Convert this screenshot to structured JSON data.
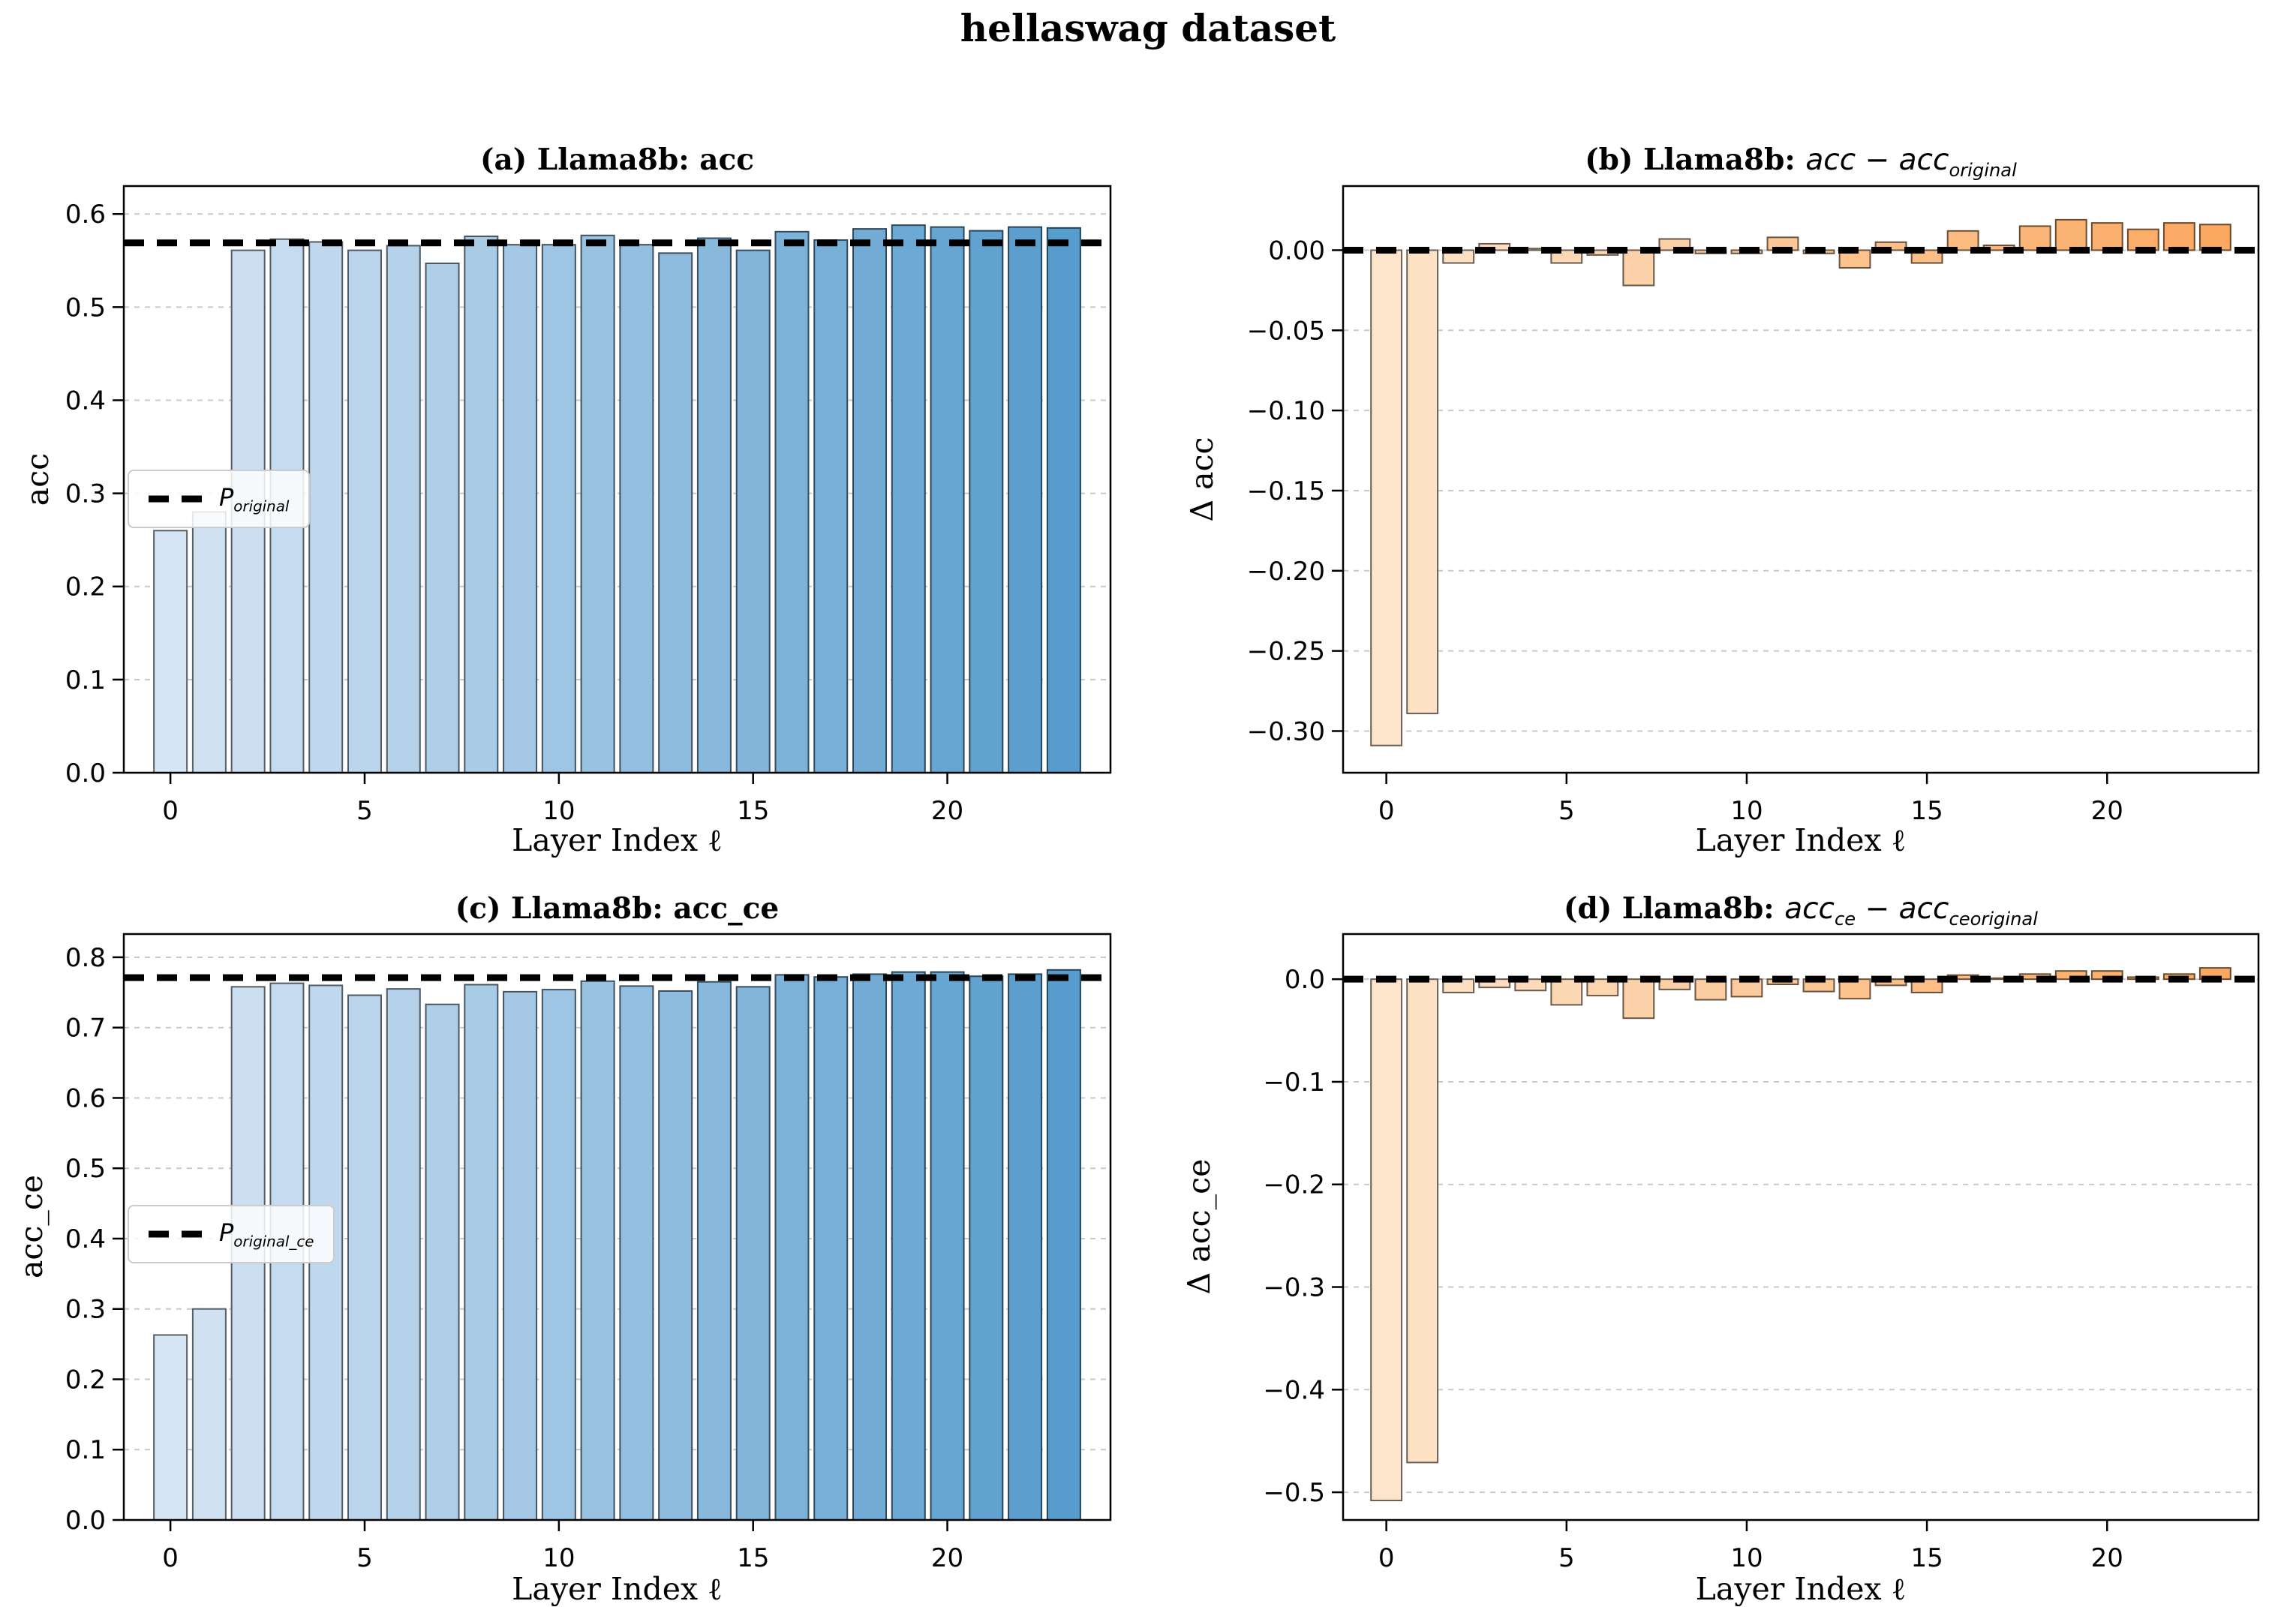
{
  "figure": {
    "suptitle": "hellaswag dataset"
  },
  "chart_data": [
    {
      "id": "a",
      "type": "bar",
      "title": {
        "prefix": "(a) Llama8b: acc",
        "math": []
      },
      "ylabel": "acc",
      "xlabel": "Layer Index ℓ",
      "x": [
        0,
        1,
        2,
        3,
        4,
        5,
        6,
        7,
        8,
        9,
        10,
        11,
        12,
        13,
        14,
        15,
        16,
        17,
        18,
        19,
        20,
        21,
        22,
        23
      ],
      "values": [
        0.26,
        0.28,
        0.561,
        0.573,
        0.57,
        0.561,
        0.566,
        0.547,
        0.576,
        0.567,
        0.567,
        0.577,
        0.567,
        0.558,
        0.574,
        0.561,
        0.581,
        0.572,
        0.584,
        0.588,
        0.586,
        0.582,
        0.586,
        0.585
      ],
      "ylim": [
        0,
        0.63
      ],
      "baseline": 0,
      "ytick_values": [
        0.0,
        0.1,
        0.2,
        0.3,
        0.4,
        0.5,
        0.6
      ],
      "ytick_labels": [
        "0.0",
        "0.1",
        "0.2",
        "0.3",
        "0.4",
        "0.5",
        "0.6"
      ],
      "xtick_values": [
        0,
        5,
        10,
        15,
        20
      ],
      "xtick_labels": [
        "0",
        "5",
        "10",
        "15",
        "20"
      ],
      "ref_line": {
        "value": 0.569,
        "legend_main": "P",
        "legend_sub": "original"
      },
      "colors": {
        "bar_start": "#d6e5f4",
        "bar_end": "#569ccd",
        "ref": "#000000",
        "grid": "#c9c9c9"
      },
      "legend_position": "center left",
      "grid": true
    },
    {
      "id": "b",
      "type": "bar",
      "title": {
        "prefix": "(b) Llama8b: ",
        "math": [
          {
            "t": "acc − acc",
            "sub": "original"
          }
        ]
      },
      "ylabel": "Δ acc",
      "xlabel": "Layer Index ℓ",
      "x": [
        0,
        1,
        2,
        3,
        4,
        5,
        6,
        7,
        8,
        9,
        10,
        11,
        12,
        13,
        14,
        15,
        16,
        17,
        18,
        19,
        20,
        21,
        22,
        23
      ],
      "values": [
        -0.309,
        -0.289,
        -0.008,
        0.004,
        0.001,
        -0.008,
        -0.003,
        -0.022,
        0.007,
        -0.002,
        -0.002,
        0.008,
        -0.002,
        -0.011,
        0.005,
        -0.008,
        0.012,
        0.003,
        0.015,
        0.019,
        0.017,
        0.013,
        0.017,
        0.016
      ],
      "ylim": [
        -0.326,
        0.04
      ],
      "baseline": 0,
      "ytick_values": [
        0.0,
        -0.05,
        -0.1,
        -0.15,
        -0.2,
        -0.25,
        -0.3
      ],
      "ytick_labels": [
        "0.00",
        "−0.05",
        "−0.10",
        "−0.15",
        "−0.20",
        "−0.25",
        "−0.30"
      ],
      "xtick_values": [
        0,
        5,
        10,
        15,
        20
      ],
      "xtick_labels": [
        "0",
        "5",
        "10",
        "15",
        "20"
      ],
      "ref_line": {
        "value": 0.0
      },
      "colors": {
        "bar_start": "#fde5cb",
        "bar_end": "#fba861",
        "ref": "#000000",
        "grid": "#c9c9c9"
      },
      "grid": true
    },
    {
      "id": "c",
      "type": "bar",
      "title": {
        "prefix": "(c) Llama8b: acc_ce",
        "math": []
      },
      "ylabel": "acc_ce",
      "xlabel": "Layer Index ℓ",
      "x": [
        0,
        1,
        2,
        3,
        4,
        5,
        6,
        7,
        8,
        9,
        10,
        11,
        12,
        13,
        14,
        15,
        16,
        17,
        18,
        19,
        20,
        21,
        22,
        23
      ],
      "values": [
        0.263,
        0.3,
        0.758,
        0.763,
        0.76,
        0.746,
        0.755,
        0.733,
        0.761,
        0.751,
        0.754,
        0.766,
        0.759,
        0.752,
        0.765,
        0.758,
        0.775,
        0.772,
        0.776,
        0.779,
        0.779,
        0.773,
        0.776,
        0.782
      ],
      "ylim": [
        0,
        0.833
      ],
      "baseline": 0,
      "ytick_values": [
        0.0,
        0.1,
        0.2,
        0.3,
        0.4,
        0.5,
        0.6,
        0.7,
        0.8
      ],
      "ytick_labels": [
        "0.0",
        "0.1",
        "0.2",
        "0.3",
        "0.4",
        "0.5",
        "0.6",
        "0.7",
        "0.8"
      ],
      "xtick_values": [
        0,
        5,
        10,
        15,
        20
      ],
      "xtick_labels": [
        "0",
        "5",
        "10",
        "15",
        "20"
      ],
      "ref_line": {
        "value": 0.771,
        "legend_main": "P",
        "legend_sub": "original_ce"
      },
      "colors": {
        "bar_start": "#d6e5f4",
        "bar_end": "#569ccd",
        "ref": "#000000",
        "grid": "#c9c9c9"
      },
      "legend_position": "center left",
      "grid": true
    },
    {
      "id": "d",
      "type": "bar",
      "title": {
        "prefix": "(d) Llama8b: ",
        "math": [
          {
            "t": "acc",
            "sub": "ce"
          },
          {
            "t": " − acc",
            "sub": "ceoriginal"
          }
        ]
      },
      "ylabel": "Δ acc_ce",
      "xlabel": "Layer Index ℓ",
      "x": [
        0,
        1,
        2,
        3,
        4,
        5,
        6,
        7,
        8,
        9,
        10,
        11,
        12,
        13,
        14,
        15,
        16,
        17,
        18,
        19,
        20,
        21,
        22,
        23
      ],
      "values": [
        -0.508,
        -0.471,
        -0.013,
        -0.008,
        -0.011,
        -0.025,
        -0.016,
        -0.038,
        -0.01,
        -0.02,
        -0.017,
        -0.005,
        -0.012,
        -0.019,
        -0.006,
        -0.013,
        0.004,
        0.001,
        0.005,
        0.008,
        0.008,
        0.002,
        0.005,
        0.011
      ],
      "ylim": [
        -0.527,
        0.044
      ],
      "baseline": 0,
      "ytick_values": [
        0.0,
        -0.1,
        -0.2,
        -0.3,
        -0.4,
        -0.5
      ],
      "ytick_labels": [
        "0.0",
        "−0.1",
        "−0.2",
        "−0.3",
        "−0.4",
        "−0.5"
      ],
      "xtick_values": [
        0,
        5,
        10,
        15,
        20
      ],
      "xtick_labels": [
        "0",
        "5",
        "10",
        "15",
        "20"
      ],
      "ref_line": {
        "value": 0.0
      },
      "colors": {
        "bar_start": "#fde5cb",
        "bar_end": "#fba861",
        "ref": "#000000",
        "grid": "#c9c9c9"
      },
      "grid": true
    }
  ]
}
